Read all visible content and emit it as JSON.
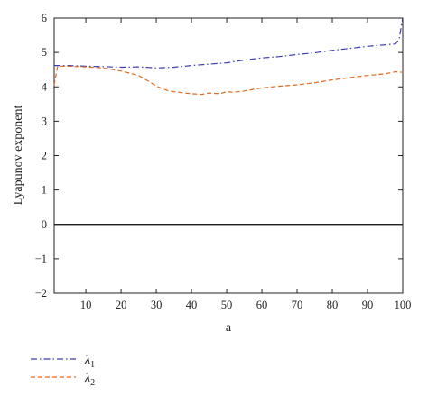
{
  "chart_data": {
    "type": "line",
    "title": "",
    "xlabel": "a",
    "ylabel": "Lyapunov exponent",
    "xlim": [
      1,
      100
    ],
    "ylim": [
      -2,
      6
    ],
    "xticks": [
      10,
      20,
      30,
      40,
      50,
      60,
      70,
      80,
      90,
      100
    ],
    "yticks": [
      -2,
      -1,
      0,
      1,
      2,
      3,
      4,
      5,
      6
    ],
    "xtick_labels": [
      "10",
      "20",
      "30",
      "40",
      "50",
      "60",
      "70",
      "80",
      "90",
      "100"
    ],
    "ytick_labels": [
      "−2",
      "−1",
      "0",
      "1",
      "2",
      "3",
      "4",
      "5",
      "6"
    ],
    "grid": false,
    "reference_line": {
      "y": 0,
      "color": "#000000"
    },
    "legend_position": "below-left",
    "series": [
      {
        "name_base": "λ",
        "name_sub": "1",
        "color": "#3b3bb3",
        "dash": "dash-dot",
        "x": [
          1,
          2,
          5,
          10,
          15,
          20,
          25,
          30,
          35,
          40,
          45,
          50,
          55,
          60,
          65,
          70,
          75,
          80,
          85,
          90,
          95,
          98,
          99,
          100
        ],
        "y": [
          4.62,
          4.62,
          4.62,
          4.6,
          4.59,
          4.57,
          4.58,
          4.55,
          4.57,
          4.62,
          4.66,
          4.7,
          4.78,
          4.84,
          4.88,
          4.94,
          4.99,
          5.06,
          5.12,
          5.18,
          5.22,
          5.25,
          5.4,
          6.0
        ]
      },
      {
        "name_base": "λ",
        "name_sub": "2",
        "color": "#e06a1f",
        "dash": "dashed",
        "x": [
          1,
          2,
          5,
          10,
          15,
          20,
          25,
          28,
          30,
          33,
          35,
          40,
          43,
          45,
          48,
          50,
          52,
          55,
          60,
          65,
          70,
          75,
          80,
          85,
          90,
          95,
          98,
          100
        ],
        "y": [
          4.05,
          4.6,
          4.6,
          4.58,
          4.55,
          4.46,
          4.33,
          4.15,
          4.02,
          3.9,
          3.86,
          3.8,
          3.78,
          3.82,
          3.8,
          3.86,
          3.84,
          3.88,
          3.97,
          4.02,
          4.06,
          4.12,
          4.2,
          4.27,
          4.33,
          4.38,
          4.44,
          4.42
        ]
      }
    ]
  }
}
